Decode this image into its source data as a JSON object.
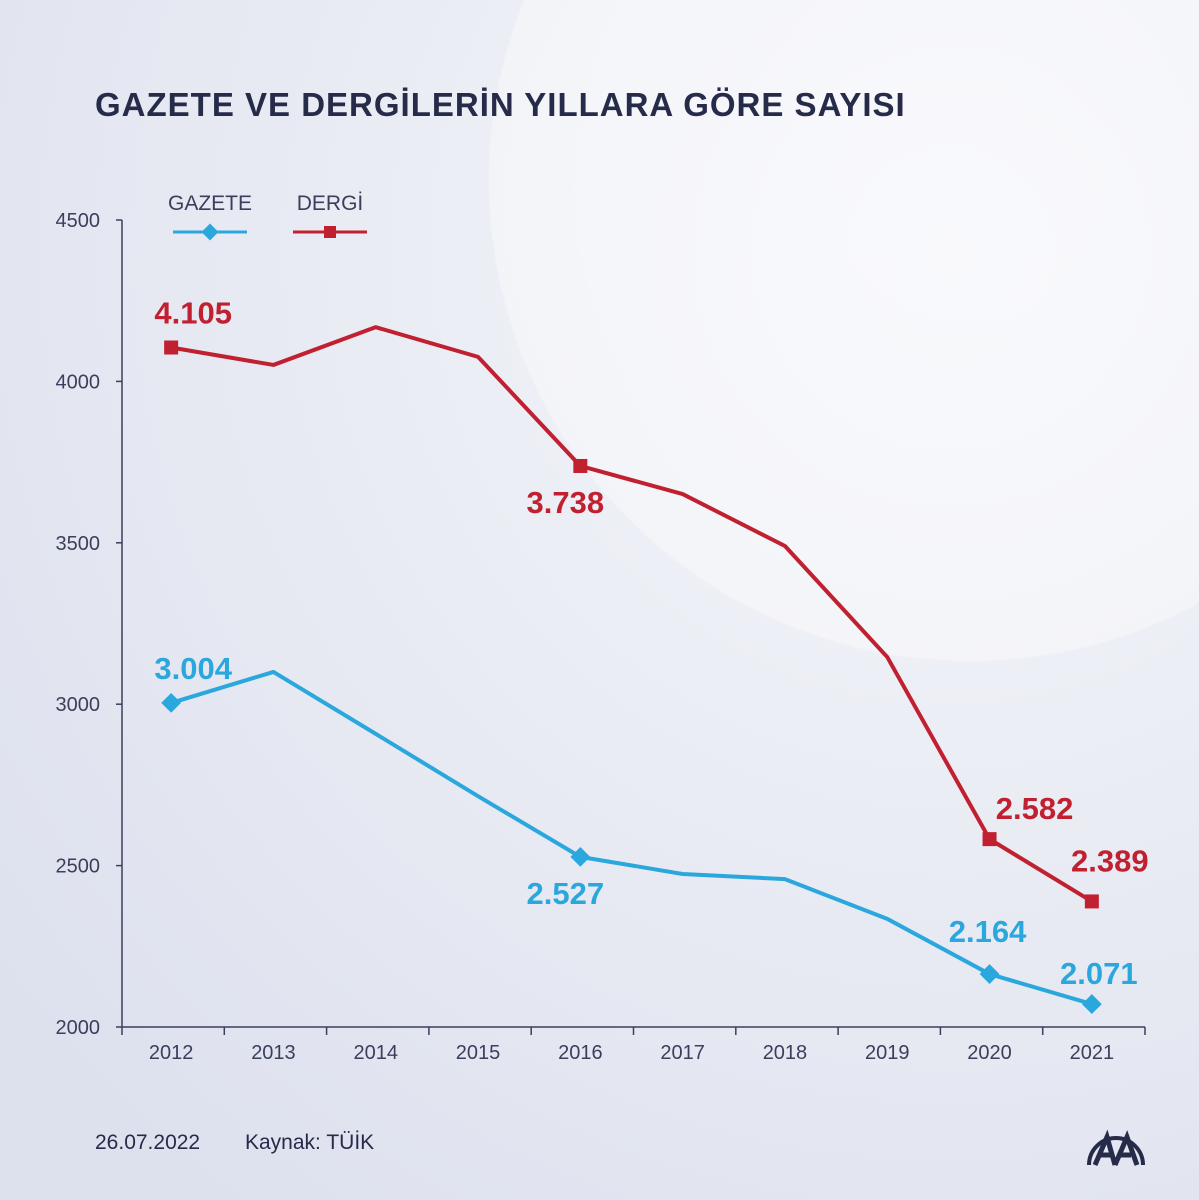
{
  "title": "GAZETE VE DERGİLERİN YILLARA GÖRE SAYISI",
  "footer": {
    "date": "26.07.2022",
    "source": "Kaynak: TÜİK",
    "logo_text": "AA"
  },
  "colors": {
    "gazete": "#2aa7dd",
    "dergi": "#c0202f",
    "axis": "#3a3f5c",
    "text": "#262b4a"
  },
  "chart_data": {
    "type": "line",
    "title": "GAZETE VE DERGİLERİN YILLARA GÖRE SAYISI",
    "xlabel": "",
    "ylabel": "",
    "categories": [
      "2012",
      "2013",
      "2014",
      "2015",
      "2016",
      "2017",
      "2018",
      "2019",
      "2020",
      "2021"
    ],
    "ylim": [
      2000,
      4500
    ],
    "yticks": [
      "2000",
      "2500",
      "3000",
      "3500",
      "4000",
      "4500"
    ],
    "legend_position": "top-left",
    "grid": false,
    "series": [
      {
        "name": "GAZETE",
        "color": "#2aa7dd",
        "marker": "diamond",
        "values": [
          3004,
          3100,
          2908,
          2715,
          2527,
          2474,
          2458,
          2335,
          2164,
          2071
        ],
        "labels": [
          {
            "index": 0,
            "text": "3.004",
            "pos": "above"
          },
          {
            "index": 4,
            "text": "2.527",
            "pos": "below"
          },
          {
            "index": 8,
            "text": "2.164",
            "pos": "above"
          },
          {
            "index": 9,
            "text": "2.071",
            "pos": "above"
          }
        ]
      },
      {
        "name": "DERGİ",
        "color": "#c0202f",
        "marker": "square",
        "values": [
          4105,
          4051,
          4168,
          4076,
          3738,
          3651,
          3490,
          3146,
          2582,
          2389
        ],
        "labels": [
          {
            "index": 0,
            "text": "4.105",
            "pos": "above"
          },
          {
            "index": 4,
            "text": "3.738",
            "pos": "below"
          },
          {
            "index": 8,
            "text": "2.582",
            "pos": "above-right"
          },
          {
            "index": 9,
            "text": "2.389",
            "pos": "above"
          }
        ]
      }
    ]
  }
}
